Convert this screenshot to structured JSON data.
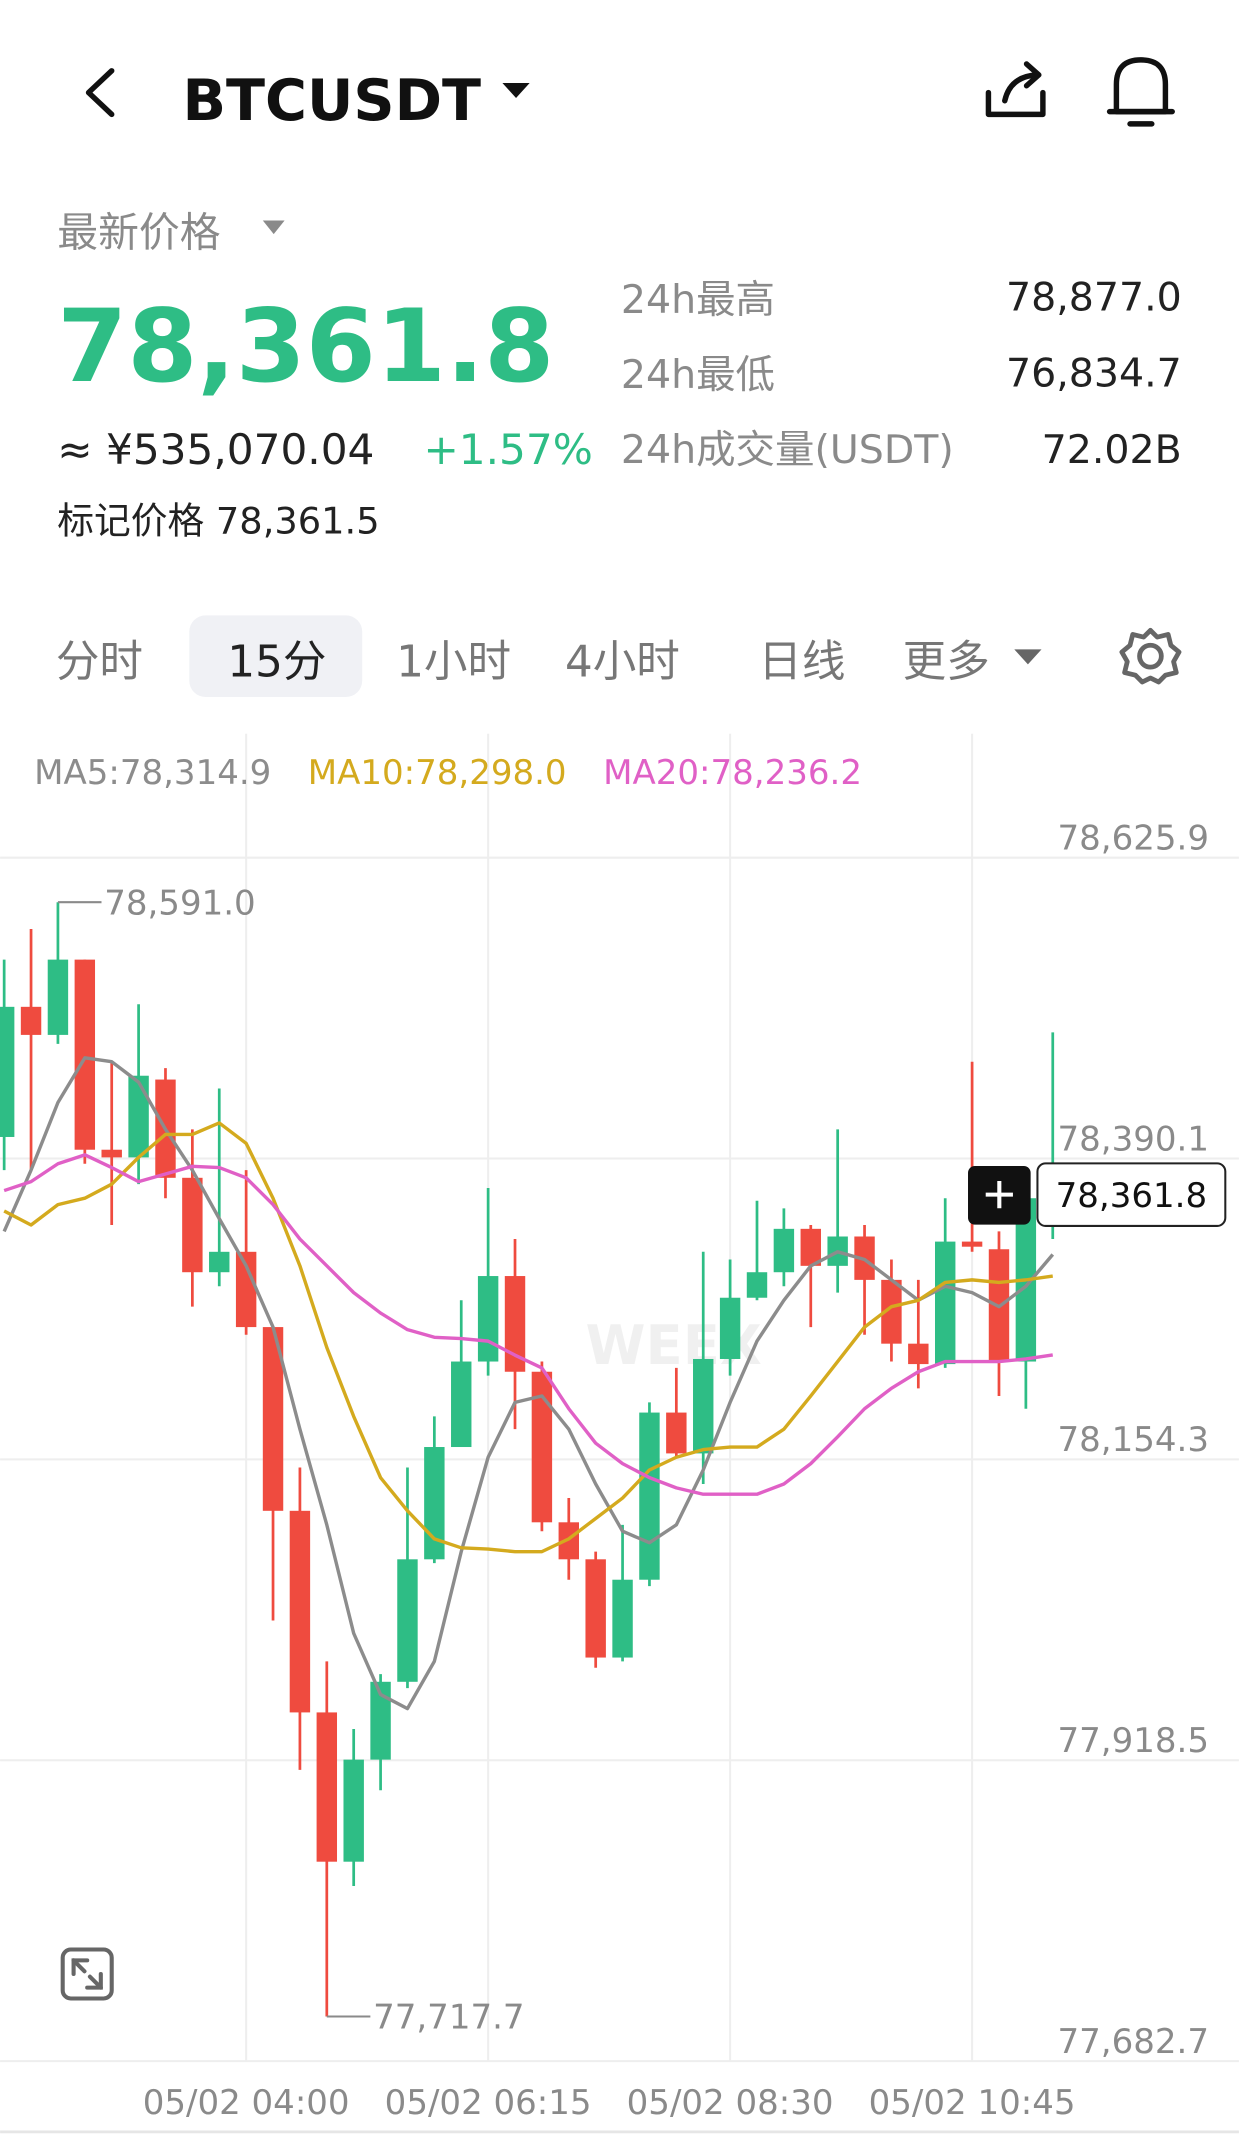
{
  "header": {
    "title": "BTCUSDT"
  },
  "price": {
    "label": "最新价格",
    "last": "78,361.8",
    "cny": "≈ ¥535,070.04",
    "change": "+1.57%",
    "mark": "标记价格 78,361.5"
  },
  "stats": [
    {
      "label": "24h最高",
      "value": "78,877.0"
    },
    {
      "label": "24h最低",
      "value": "76,834.7"
    },
    {
      "label": "24h成交量(USDT)",
      "value": "72.02B"
    }
  ],
  "tabs": [
    "分时",
    "15分",
    "1小时",
    "4小时",
    "日线",
    "更多"
  ],
  "selected_tab": 1,
  "chart_data": {
    "type": "candlestick",
    "watermark": "WEEX",
    "up_color": "#2ebd85",
    "down_color": "#ef4b3f",
    "categories": [
      null,
      null,
      null,
      null,
      null,
      null,
      null,
      null,
      null,
      "05/02 04:00",
      null,
      null,
      null,
      null,
      null,
      null,
      null,
      null,
      "05/02 06:15",
      null,
      null,
      null,
      null,
      null,
      null,
      null,
      null,
      "05/02 08:30",
      null,
      null,
      null,
      null,
      null,
      null,
      null,
      null,
      "05/02 10:45",
      null,
      null,
      null
    ],
    "open": [
      78407,
      78509,
      78487,
      78546,
      78397,
      78391,
      78452,
      78375,
      78301,
      78317,
      78258,
      78114,
      77956,
      77839,
      77919,
      77980,
      78076,
      78164,
      78231,
      78298,
      78223,
      78105,
      78076,
      77999,
      78060,
      78191,
      78159,
      78233,
      78281,
      78301,
      78335,
      78306,
      78329,
      78295,
      78245,
      78229,
      78325,
      78319,
      78231,
      78340
    ],
    "high": [
      78546,
      78570,
      78591,
      78546,
      78466,
      78511,
      78461,
      78413,
      78445,
      78381,
      78258,
      78148,
      77996,
      77943,
      77986,
      78148,
      78188,
      78279,
      78367,
      78327,
      78231,
      78124,
      78082,
      78103,
      78199,
      78226,
      78317,
      78311,
      78357,
      78351,
      78338,
      78413,
      78338,
      78311,
      78295,
      78359,
      78466,
      78333,
      78370,
      78489
    ],
    "low": [
      78381,
      78381,
      78480,
      78386,
      78338,
      78370,
      78359,
      78274,
      78290,
      78252,
      78028,
      77911,
      77717.7,
      77820,
      77895,
      77975,
      78073,
      78164,
      78220,
      78178,
      78098,
      78060,
      77991,
      77996,
      78055,
      78156,
      78135,
      78220,
      78279,
      78290,
      78258,
      78285,
      78252,
      78231,
      78210,
      78226,
      78317,
      78204,
      78194,
      78327
    ],
    "close": [
      78509,
      78487,
      78546,
      78397,
      78391,
      78455,
      78375,
      78301,
      78317,
      78258,
      78114,
      77956,
      77839,
      77919,
      77980,
      78076,
      78164,
      78231,
      78298,
      78223,
      78105,
      78076,
      77999,
      78060,
      78191,
      78159,
      78233,
      78281,
      78301,
      78335,
      78306,
      78329,
      78295,
      78245,
      78229,
      78325,
      78321,
      78231,
      78359,
      78361.8
    ],
    "series": [
      {
        "name": "MA5:78,314.9",
        "color": "#8c8c8c",
        "values": [
          78333,
          78381,
          78434,
          78469,
          78466,
          78450,
          78413,
          78381,
          78343,
          78306,
          78258,
          78178,
          78103,
          78018,
          77970,
          77959,
          77996,
          78082,
          78156,
          78199,
          78204,
          78178,
          78135,
          78098,
          78089,
          78103,
          78146,
          78199,
          78247,
          78279,
          78306,
          78317,
          78311,
          78295,
          78279,
          78290,
          78285,
          78274,
          78290,
          78314.9
        ]
      },
      {
        "name": "MA10:78,298.0",
        "color": "#d4aa1e",
        "values": [
          78349,
          78338,
          78354,
          78359,
          78370,
          78391,
          78409,
          78409,
          78418,
          78402,
          78359,
          78306,
          78242,
          78188,
          78140,
          78114,
          78092,
          78085,
          78084,
          78082,
          78082,
          78092,
          78108,
          78124,
          78146,
          78156,
          78162,
          78164,
          78164,
          78178,
          78204,
          78231,
          78258,
          78274,
          78279,
          78293,
          78295,
          78293,
          78295,
          78298.0
        ]
      },
      {
        "name": "MA20:78,236.2",
        "color": "#e060c6",
        "values": [
          78365,
          78372,
          78386,
          78393,
          78383,
          78372,
          78378,
          78384,
          78383,
          78375,
          78354,
          78327,
          78306,
          78285,
          78269,
          78256,
          78250,
          78249,
          78247,
          78236,
          78226,
          78194,
          78167,
          78151,
          78140,
          78132,
          78127,
          78127,
          78127,
          78135,
          78151,
          78172,
          78194,
          78210,
          78223,
          78231,
          78231,
          78231,
          78233,
          78236.2
        ]
      }
    ],
    "ylim": [
      77682.7,
      78723.0
    ],
    "yticks": [
      {
        "value": 78625.9,
        "label": "78,625.9"
      },
      {
        "value": 78390.1,
        "label": "78,390.1"
      },
      {
        "value": 78154.3,
        "label": "78,154.3"
      },
      {
        "value": 77918.5,
        "label": "77,918.5"
      },
      {
        "value": 77682.7,
        "label": "77,682.7"
      }
    ],
    "grid": true,
    "max_mark": {
      "value": 78591.0,
      "label": "78,591.0"
    },
    "min_mark": {
      "value": 77717.7,
      "label": "77,717.7"
    },
    "last_price": {
      "value": 78361.8,
      "label": "78,361.8"
    }
  }
}
